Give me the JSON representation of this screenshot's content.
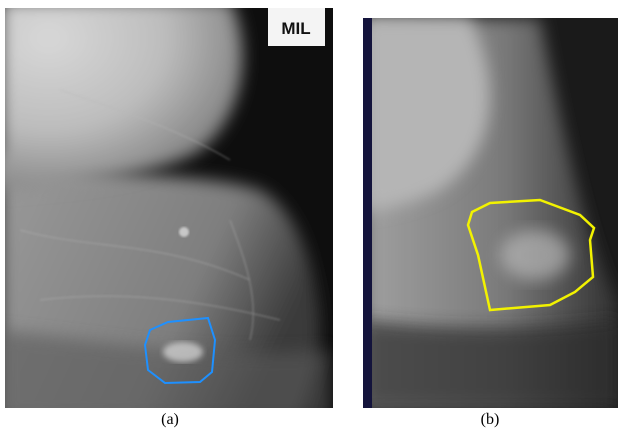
{
  "panels": [
    {
      "label": "(a)",
      "marker": "MIL"
    },
    {
      "label": "(b)"
    }
  ]
}
